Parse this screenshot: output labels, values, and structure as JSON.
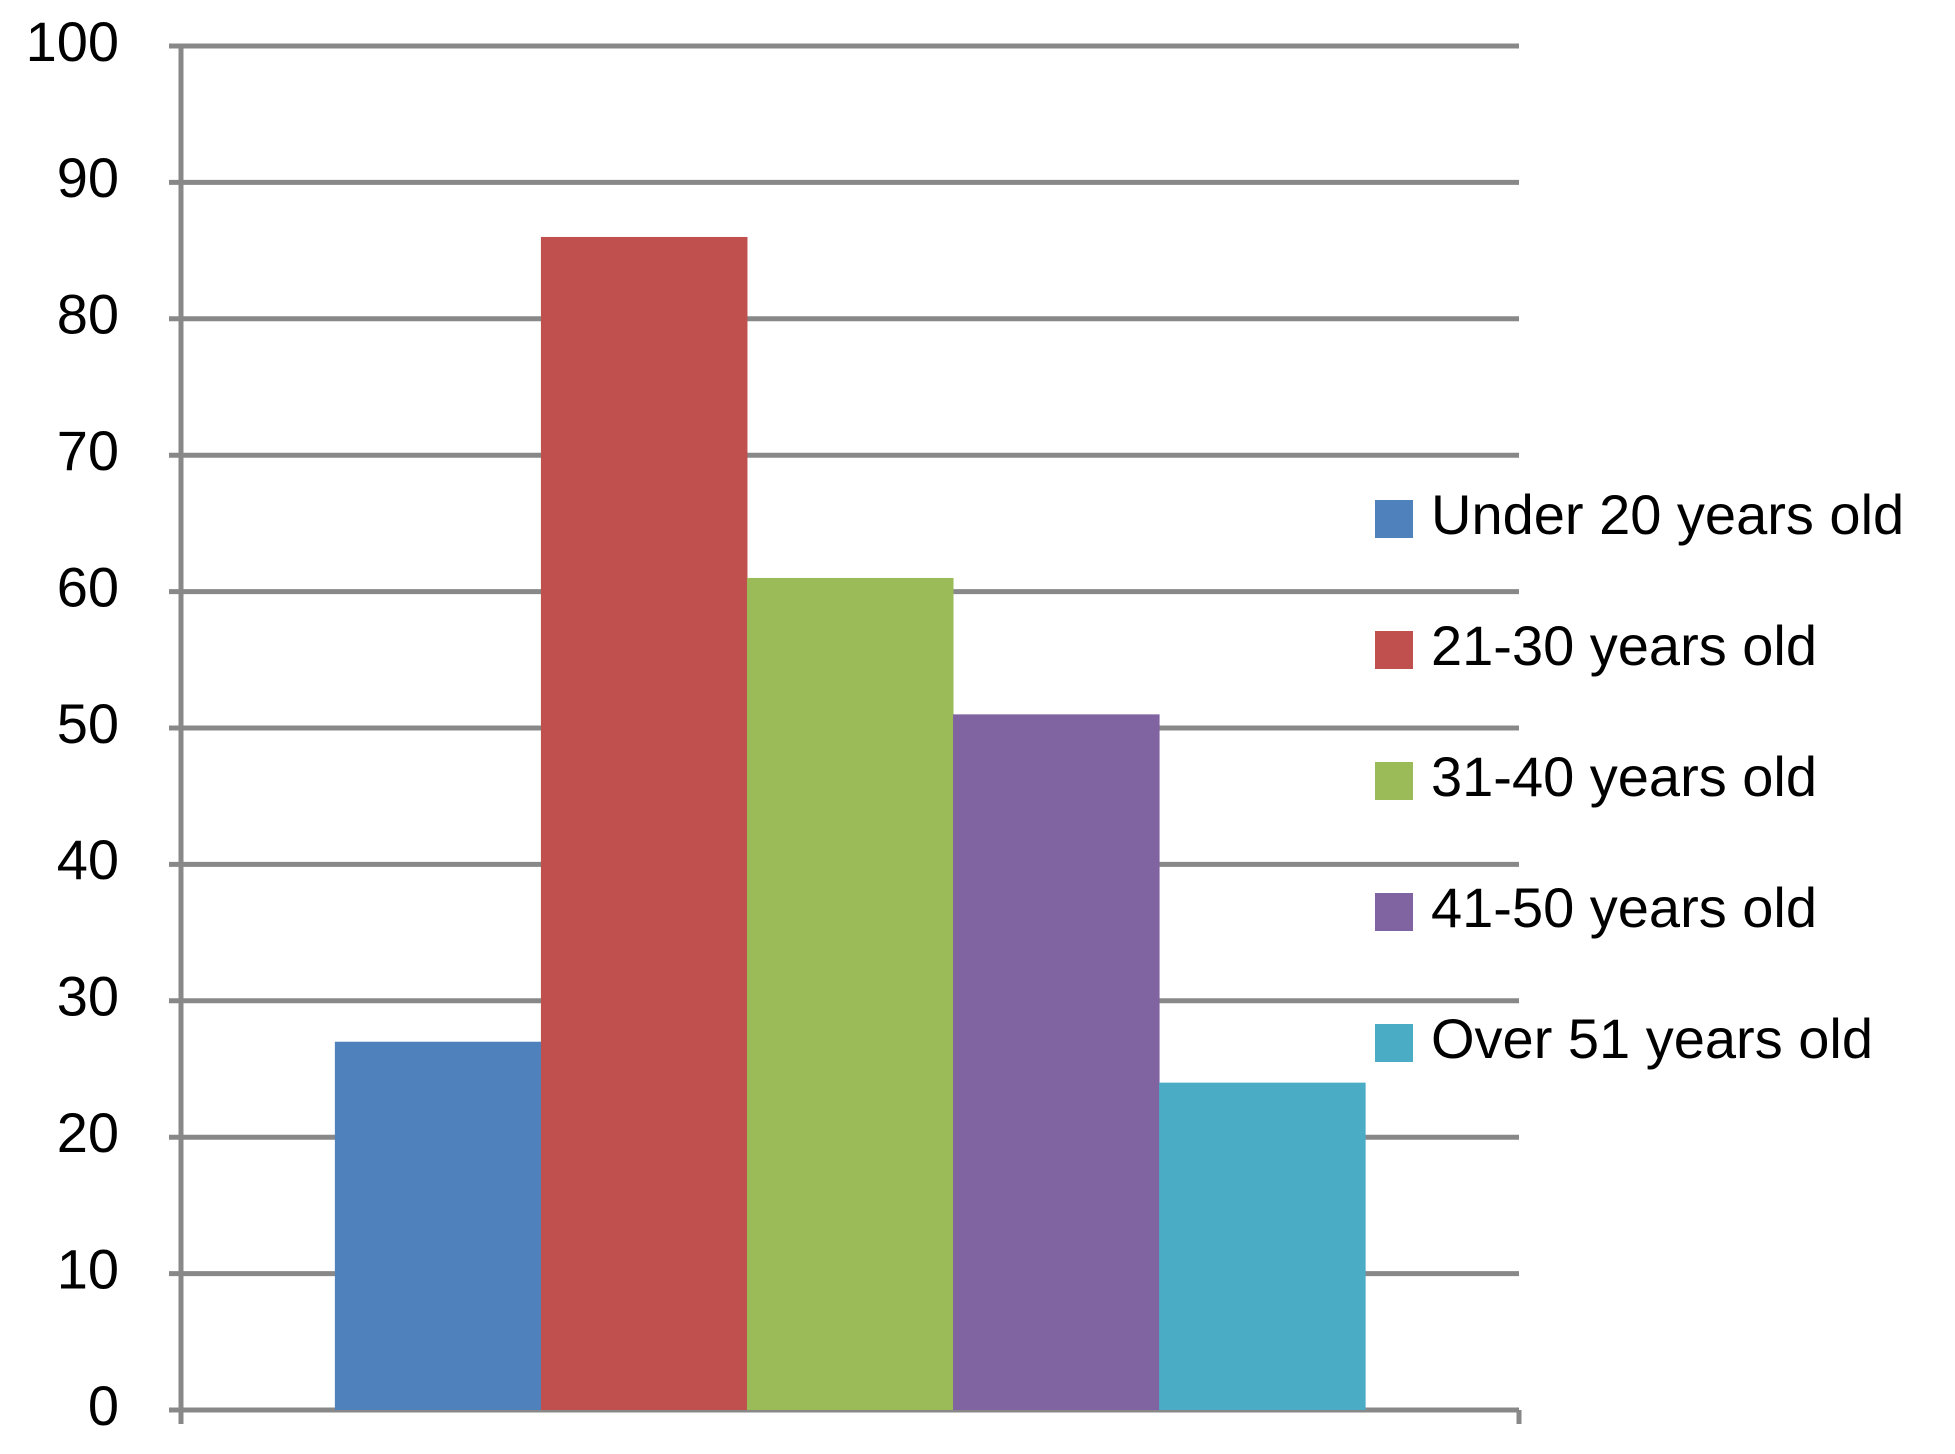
{
  "chart_data": {
    "type": "bar",
    "categories": [
      null
    ],
    "series": [
      {
        "name": "Under 20 years old",
        "color": "#4f81bd",
        "values": [
          27
        ]
      },
      {
        "name": "21-30 years old",
        "color": "#c0504d",
        "values": [
          86
        ]
      },
      {
        "name": "31-40 years old",
        "color": "#9bbb59",
        "values": [
          61
        ]
      },
      {
        "name": "41-50 years old",
        "color": "#8064a2",
        "values": [
          51
        ]
      },
      {
        "name": "Over 51 years old",
        "color": "#4bacc6",
        "values": [
          24
        ]
      }
    ],
    "ylim": [
      0,
      100
    ],
    "yticks": [
      0,
      10,
      20,
      30,
      40,
      50,
      60,
      70,
      80,
      90,
      100
    ],
    "grid": true,
    "legend": "right"
  }
}
